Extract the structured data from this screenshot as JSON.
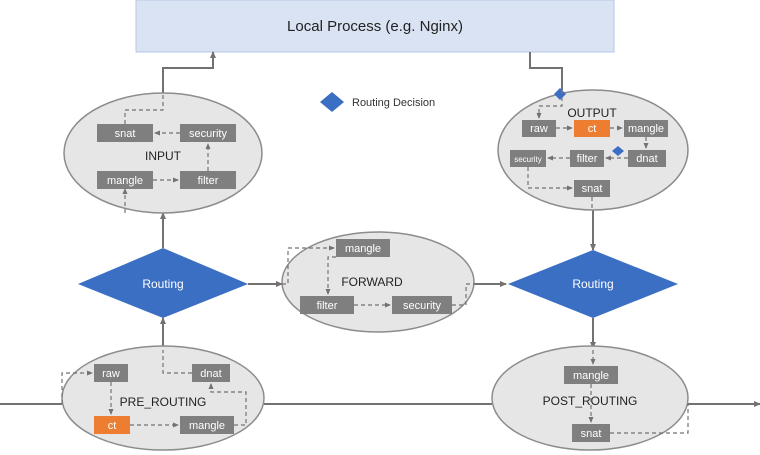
{
  "local_process": {
    "title": "Local Process (e.g. Nginx)"
  },
  "legend": {
    "label": "Routing Decision"
  },
  "input": {
    "title": "INPUT",
    "snat": "snat",
    "security": "security",
    "mangle": "mangle",
    "filter": "filter"
  },
  "output": {
    "title": "OUTPUT",
    "raw": "raw",
    "ct": "ct",
    "mangle": "mangle",
    "security": "security",
    "filter": "filter",
    "dnat": "dnat",
    "snat": "snat"
  },
  "forward": {
    "title": "FORWARD",
    "mangle": "mangle",
    "filter": "filter",
    "security": "security"
  },
  "routing_left": {
    "label": "Routing"
  },
  "routing_right": {
    "label": "Routing"
  },
  "pre_routing": {
    "title": "PRE_ROUTING",
    "raw": "raw",
    "dnat": "dnat",
    "ct": "ct",
    "mangle": "mangle"
  },
  "post_routing": {
    "title": "POST_ROUTING",
    "mangle": "mangle",
    "snat": "snat"
  },
  "colors": {
    "process_fill": "#dae3f3",
    "process_stroke": "#b4c7e7",
    "ellipse_fill": "#e7e6e6",
    "ellipse_stroke": "#8c8c8c",
    "box_gray": "#7f7f7f",
    "box_orange": "#ed7d31",
    "diamond": "#3a6fc4",
    "line": "#767171"
  }
}
